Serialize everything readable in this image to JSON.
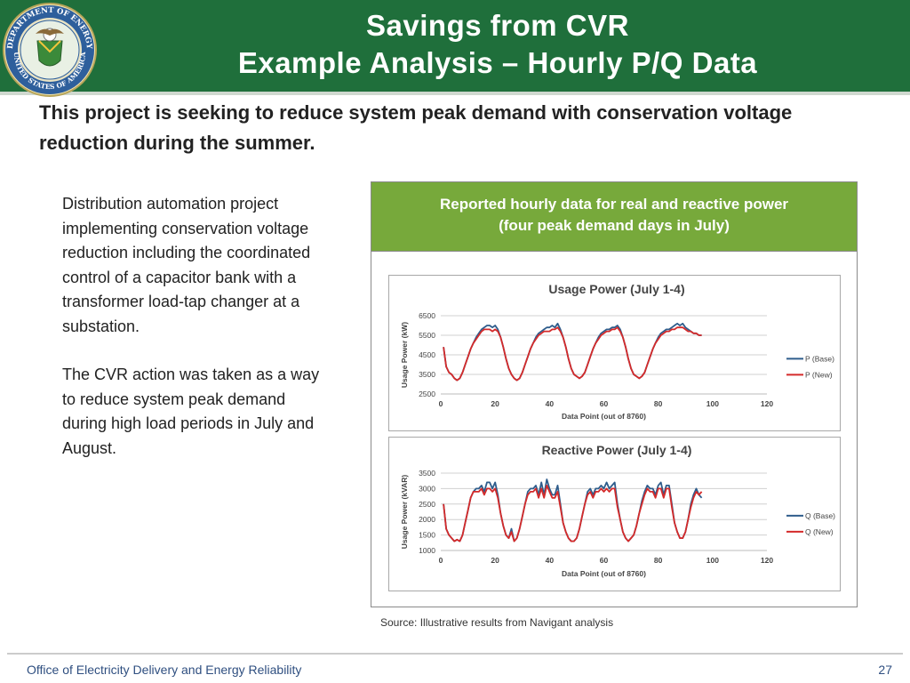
{
  "header": {
    "title_line1": "Savings from CVR",
    "title_line2": "Example Analysis – Hourly P/Q Data",
    "seal_text": "DEPARTMENT OF ENERGY • UNITED STATES OF AMERICA"
  },
  "subtitle": "This project is seeking to reduce system peak demand with conservation voltage reduction during the summer.",
  "body": {
    "paragraph1": "Distribution automation project implementing  conservation voltage reduction including the coordinated control of a capacitor bank with a transformer load-tap changer at a substation.",
    "paragraph2": "The CVR action was taken as a way to reduce system peak demand during high load periods in July and August."
  },
  "panel": {
    "header_line1": "Reported hourly data for real and reactive power",
    "header_line2": "(four peak demand days in July)"
  },
  "colors": {
    "base": "#2f5d8c",
    "new": "#d42a2a",
    "header": "#1f6f3b",
    "panel_header": "#77a93b"
  },
  "chart_data": [
    {
      "type": "line",
      "title": "Usage Power (July 1-4)",
      "xlabel": "Data Point (out of 8760)",
      "ylabel": "Usage Power (kW)",
      "xlim": [
        0,
        120
      ],
      "ylim": [
        2500,
        6500
      ],
      "xticks": [
        "0",
        "20",
        "40",
        "60",
        "80",
        "100",
        "120"
      ],
      "yticks": [
        "2500",
        "3500",
        "4500",
        "5500",
        "6500"
      ],
      "legend": "right",
      "grid": true,
      "series": [
        {
          "name": "P (Base)",
          "color": "#2f5d8c",
          "x": [
            1,
            2,
            3,
            4,
            5,
            6,
            7,
            8,
            9,
            10,
            11,
            12,
            13,
            14,
            15,
            16,
            17,
            18,
            19,
            20,
            21,
            22,
            23,
            24,
            25,
            26,
            27,
            28,
            29,
            30,
            31,
            32,
            33,
            34,
            35,
            36,
            37,
            38,
            39,
            40,
            41,
            42,
            43,
            44,
            45,
            46,
            47,
            48,
            49,
            50,
            51,
            52,
            53,
            54,
            55,
            56,
            57,
            58,
            59,
            60,
            61,
            62,
            63,
            64,
            65,
            66,
            67,
            68,
            69,
            70,
            71,
            72,
            73,
            74,
            75,
            76,
            77,
            78,
            79,
            80,
            81,
            82,
            83,
            84,
            85,
            86,
            87,
            88,
            89,
            90,
            91,
            92,
            93,
            94,
            95,
            96
          ],
          "values": [
            4900,
            3900,
            3600,
            3500,
            3300,
            3200,
            3300,
            3600,
            4000,
            4400,
            4800,
            5100,
            5400,
            5600,
            5800,
            5900,
            6000,
            6000,
            5900,
            6000,
            5800,
            5400,
            4900,
            4300,
            3800,
            3500,
            3300,
            3200,
            3300,
            3600,
            4000,
            4400,
            4800,
            5100,
            5400,
            5600,
            5700,
            5800,
            5900,
            5900,
            6000,
            5900,
            6100,
            5800,
            5400,
            4900,
            4300,
            3800,
            3500,
            3400,
            3300,
            3400,
            3600,
            4000,
            4400,
            4800,
            5100,
            5400,
            5600,
            5700,
            5800,
            5800,
            5900,
            5900,
            6000,
            5800,
            5400,
            4900,
            4300,
            3800,
            3500,
            3400,
            3300,
            3400,
            3600,
            4000,
            4400,
            4800,
            5100,
            5400,
            5600,
            5700,
            5800,
            5800,
            5900,
            6000,
            6100,
            6000,
            6100,
            5900,
            5800,
            5700,
            5600,
            5600,
            5500,
            5500
          ]
        },
        {
          "name": "P (New)",
          "color": "#d42a2a",
          "x": [
            1,
            2,
            3,
            4,
            5,
            6,
            7,
            8,
            9,
            10,
            11,
            12,
            13,
            14,
            15,
            16,
            17,
            18,
            19,
            20,
            21,
            22,
            23,
            24,
            25,
            26,
            27,
            28,
            29,
            30,
            31,
            32,
            33,
            34,
            35,
            36,
            37,
            38,
            39,
            40,
            41,
            42,
            43,
            44,
            45,
            46,
            47,
            48,
            49,
            50,
            51,
            52,
            53,
            54,
            55,
            56,
            57,
            58,
            59,
            60,
            61,
            62,
            63,
            64,
            65,
            66,
            67,
            68,
            69,
            70,
            71,
            72,
            73,
            74,
            75,
            76,
            77,
            78,
            79,
            80,
            81,
            82,
            83,
            84,
            85,
            86,
            87,
            88,
            89,
            90,
            91,
            92,
            93,
            94,
            95,
            96
          ],
          "values": [
            4900,
            3900,
            3600,
            3500,
            3300,
            3200,
            3300,
            3600,
            4000,
            4400,
            4800,
            5100,
            5300,
            5500,
            5700,
            5800,
            5800,
            5800,
            5700,
            5800,
            5700,
            5400,
            4900,
            4300,
            3800,
            3500,
            3300,
            3200,
            3300,
            3600,
            4000,
            4400,
            4800,
            5100,
            5300,
            5500,
            5600,
            5700,
            5700,
            5700,
            5800,
            5800,
            5900,
            5700,
            5400,
            4900,
            4300,
            3800,
            3500,
            3400,
            3300,
            3400,
            3600,
            4000,
            4400,
            4800,
            5100,
            5300,
            5500,
            5600,
            5700,
            5700,
            5800,
            5800,
            5900,
            5700,
            5400,
            4900,
            4300,
            3800,
            3500,
            3400,
            3300,
            3400,
            3600,
            4000,
            4400,
            4800,
            5100,
            5300,
            5500,
            5600,
            5700,
            5700,
            5800,
            5800,
            5900,
            5900,
            5900,
            5800,
            5700,
            5700,
            5600,
            5600,
            5500,
            5500
          ]
        }
      ]
    },
    {
      "type": "line",
      "title": "Reactive Power (July 1-4)",
      "xlabel": "Data Point (out of 8760)",
      "ylabel": "Usage Power (kVAR)",
      "xlim": [
        0,
        120
      ],
      "ylim": [
        1000,
        3500
      ],
      "xticks": [
        "0",
        "20",
        "40",
        "60",
        "80",
        "100",
        "120"
      ],
      "yticks": [
        "1000",
        "1500",
        "2000",
        "2500",
        "3000",
        "3500"
      ],
      "legend": "right",
      "grid": true,
      "series": [
        {
          "name": "Q (Base)",
          "color": "#2f5d8c",
          "x": [
            1,
            2,
            3,
            4,
            5,
            6,
            7,
            8,
            9,
            10,
            11,
            12,
            13,
            14,
            15,
            16,
            17,
            18,
            19,
            20,
            21,
            22,
            23,
            24,
            25,
            26,
            27,
            28,
            29,
            30,
            31,
            32,
            33,
            34,
            35,
            36,
            37,
            38,
            39,
            40,
            41,
            42,
            43,
            44,
            45,
            46,
            47,
            48,
            49,
            50,
            51,
            52,
            53,
            54,
            55,
            56,
            57,
            58,
            59,
            60,
            61,
            62,
            63,
            64,
            65,
            66,
            67,
            68,
            69,
            70,
            71,
            72,
            73,
            74,
            75,
            76,
            77,
            78,
            79,
            80,
            81,
            82,
            83,
            84,
            85,
            86,
            87,
            88,
            89,
            90,
            91,
            92,
            93,
            94,
            95,
            96
          ],
          "values": [
            2500,
            1700,
            1500,
            1400,
            1300,
            1350,
            1300,
            1500,
            1900,
            2300,
            2700,
            2900,
            3000,
            3000,
            3100,
            2900,
            3200,
            3200,
            3000,
            3200,
            2800,
            2200,
            1800,
            1500,
            1400,
            1700,
            1300,
            1400,
            1700,
            2100,
            2500,
            2900,
            3000,
            3000,
            3100,
            2800,
            3200,
            2800,
            3300,
            3000,
            2800,
            2800,
            3100,
            2500,
            1900,
            1600,
            1400,
            1300,
            1300,
            1400,
            1700,
            2100,
            2500,
            2900,
            3000,
            2800,
            3000,
            3000,
            3100,
            3000,
            3200,
            3000,
            3100,
            3200,
            2500,
            2000,
            1600,
            1400,
            1300,
            1400,
            1500,
            1800,
            2200,
            2600,
            2900,
            3100,
            3000,
            3000,
            2800,
            3100,
            3200,
            2800,
            3100,
            3100,
            2500,
            1900,
            1600,
            1400,
            1400,
            1600,
            2000,
            2500,
            2800,
            3000,
            2800,
            2700
          ]
        },
        {
          "name": "Q (New)",
          "color": "#d42a2a",
          "x": [
            1,
            2,
            3,
            4,
            5,
            6,
            7,
            8,
            9,
            10,
            11,
            12,
            13,
            14,
            15,
            16,
            17,
            18,
            19,
            20,
            21,
            22,
            23,
            24,
            25,
            26,
            27,
            28,
            29,
            30,
            31,
            32,
            33,
            34,
            35,
            36,
            37,
            38,
            39,
            40,
            41,
            42,
            43,
            44,
            45,
            46,
            47,
            48,
            49,
            50,
            51,
            52,
            53,
            54,
            55,
            56,
            57,
            58,
            59,
            60,
            61,
            62,
            63,
            64,
            65,
            66,
            67,
            68,
            69,
            70,
            71,
            72,
            73,
            74,
            75,
            76,
            77,
            78,
            79,
            80,
            81,
            82,
            83,
            84,
            85,
            86,
            87,
            88,
            89,
            90,
            91,
            92,
            93,
            94,
            95,
            96
          ],
          "values": [
            2500,
            1700,
            1500,
            1400,
            1300,
            1350,
            1300,
            1500,
            1900,
            2300,
            2700,
            2900,
            2900,
            2900,
            3000,
            2800,
            3000,
            3000,
            2900,
            3000,
            2700,
            2200,
            1800,
            1500,
            1400,
            1600,
            1300,
            1400,
            1700,
            2100,
            2500,
            2800,
            2900,
            2900,
            3000,
            2700,
            3000,
            2700,
            3100,
            2900,
            2700,
            2700,
            2900,
            2400,
            1900,
            1600,
            1400,
            1300,
            1300,
            1400,
            1700,
            2100,
            2500,
            2800,
            2900,
            2700,
            2900,
            2900,
            3000,
            2900,
            3000,
            2900,
            3000,
            3000,
            2400,
            2000,
            1600,
            1400,
            1300,
            1400,
            1500,
            1800,
            2200,
            2500,
            2800,
            3000,
            2900,
            2900,
            2700,
            3000,
            3000,
            2700,
            3000,
            3000,
            2400,
            1900,
            1600,
            1400,
            1400,
            1600,
            2000,
            2400,
            2700,
            2900,
            2800,
            2900
          ]
        }
      ]
    }
  ],
  "source": "Source: Illustrative results from Navigant analysis",
  "footer": {
    "left": "Office of Electricity Delivery and Energy Reliability",
    "page": "27"
  }
}
